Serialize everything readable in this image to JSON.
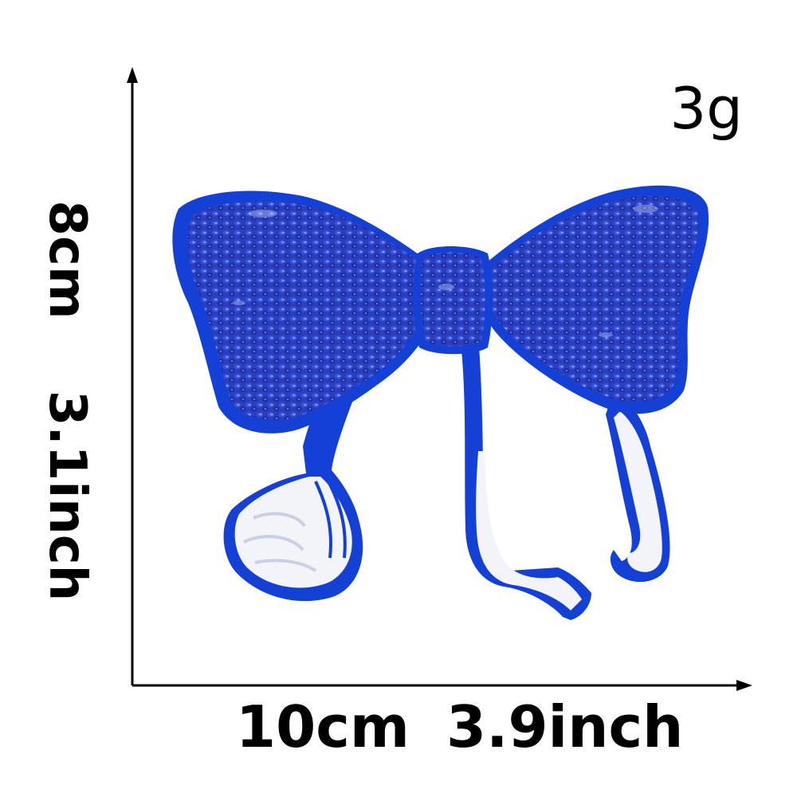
{
  "labels": {
    "weight": "3g",
    "height_cm": "8cm",
    "height_inch": "3.1inch",
    "width_cm": "10cm",
    "width_inch": "3.9inch"
  },
  "colors": {
    "patch_blue": "#1f3fc9",
    "patch_border": "#1340d8",
    "sequin_highlight": "#7fa2ff",
    "embroidery_white": "#f4f6fb"
  },
  "image": {
    "subject": "blue sequin bow patch"
  }
}
